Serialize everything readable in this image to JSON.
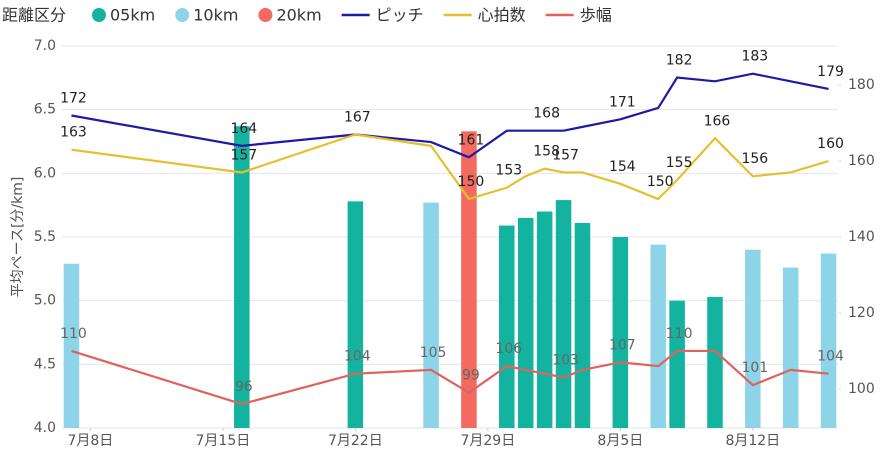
{
  "chart_data": {
    "type": "combo",
    "legend_title": "距離区分",
    "ylabel": "平均ペース[分/km]",
    "x": [
      "7月7日",
      "7月16日",
      "7月22日",
      "7月26日",
      "7月28日",
      "7月30日",
      "7月31日",
      "8月1日",
      "8月2日",
      "8月3日",
      "8月5日",
      "8月7日",
      "8月8日",
      "8月10日",
      "8月12日",
      "8月14日",
      "8月16日"
    ],
    "xlim": [
      "7月7日",
      "8月16日"
    ],
    "xticks": [
      "7月8日",
      "7月15日",
      "7月22日",
      "7月29日",
      "8月5日",
      "8月12日"
    ],
    "ylim": [
      4,
      7
    ],
    "yticks": [
      {
        "value": 4,
        "label": "4.0"
      },
      {
        "value": 4.5,
        "label": "4.5"
      },
      {
        "value": 5,
        "label": "5.0"
      },
      {
        "value": 5.5,
        "label": "5.5"
      },
      {
        "value": 6,
        "label": "6.0"
      },
      {
        "value": 6.5,
        "label": "6.5"
      },
      {
        "value": 7,
        "label": "7.0"
      }
    ],
    "y2lim": [
      89.7,
      190.3
    ],
    "y2ticks": [
      100,
      120,
      140,
      160,
      180
    ],
    "grid": true,
    "series": [
      {
        "name": "05km",
        "type": "bar",
        "color": "#14b3a0",
        "values": [
          null,
          6.37,
          5.78,
          null,
          null,
          5.59,
          5.65,
          5.7,
          5.79,
          5.61,
          5.5,
          null,
          5.0,
          5.03,
          null,
          null,
          null
        ]
      },
      {
        "name": "10km",
        "type": "bar",
        "color": "#8dd4e8",
        "values": [
          5.29,
          null,
          null,
          5.77,
          null,
          null,
          null,
          null,
          null,
          null,
          null,
          5.44,
          null,
          null,
          5.4,
          5.26,
          5.37
        ]
      },
      {
        "name": "20km",
        "type": "bar",
        "color": "#f26a60",
        "values": [
          null,
          null,
          null,
          null,
          6.33,
          null,
          null,
          null,
          null,
          null,
          null,
          null,
          null,
          null,
          null,
          null,
          null
        ]
      },
      {
        "name": "ピッチ",
        "type": "line",
        "axis": "y2",
        "color": "#1b1ba6",
        "values": [
          172,
          164,
          167,
          165,
          161,
          168,
          168,
          168,
          168,
          169,
          171,
          174,
          182,
          181,
          183,
          181,
          179
        ],
        "value_labels": [
          "172",
          "164",
          null,
          null,
          "161",
          null,
          null,
          "168",
          null,
          null,
          "171",
          null,
          "182",
          null,
          "183",
          null,
          "179"
        ]
      },
      {
        "name": "心拍数",
        "type": "line",
        "axis": "y2",
        "color": "#e5c02a",
        "values": [
          163,
          157,
          167,
          164,
          150,
          153,
          156,
          158,
          157,
          157,
          154,
          150,
          155,
          166,
          156,
          157,
          160
        ],
        "value_labels": [
          "163",
          "157",
          "167",
          null,
          "150",
          "153",
          null,
          "158",
          "157",
          null,
          "154",
          "150",
          "155",
          "166",
          "156",
          null,
          "160"
        ]
      },
      {
        "name": "歩幅",
        "type": "line",
        "axis": "y2",
        "color": "#e0625c",
        "label_color": "#666",
        "values": [
          110,
          96,
          104,
          105,
          99,
          106,
          105,
          104,
          103,
          105,
          107,
          106,
          110,
          110,
          101,
          105,
          104
        ],
        "value_labels": [
          "110",
          "96",
          "104",
          "105",
          "99",
          "106",
          null,
          null,
          "103",
          null,
          "107",
          null,
          "110",
          null,
          "101",
          null,
          "104"
        ]
      }
    ]
  }
}
